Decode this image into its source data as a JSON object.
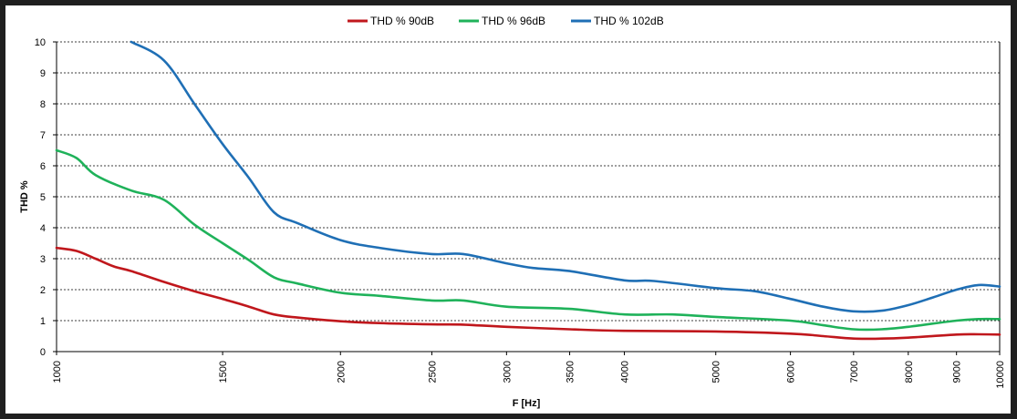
{
  "chart_data": {
    "type": "line",
    "xlabel": "F [Hz]",
    "ylabel": "THD %",
    "x_scale": "log",
    "xlim": [
      1000,
      10000
    ],
    "ylim": [
      0,
      10
    ],
    "x_ticks": [
      1000,
      1500,
      2000,
      2500,
      3000,
      3500,
      4000,
      5000,
      6000,
      7000,
      8000,
      9000,
      10000
    ],
    "y_ticks": [
      0,
      1,
      2,
      3,
      4,
      5,
      6,
      7,
      8,
      9,
      10
    ],
    "grid": "horizontal dashed",
    "legend_position": "top",
    "series": [
      {
        "name": "THD % 90dB",
        "color": "#c0171c",
        "points": [
          [
            1000,
            3.35
          ],
          [
            1050,
            3.25
          ],
          [
            1100,
            3.0
          ],
          [
            1150,
            2.75
          ],
          [
            1200,
            2.6
          ],
          [
            1300,
            2.25
          ],
          [
            1400,
            1.95
          ],
          [
            1500,
            1.7
          ],
          [
            1600,
            1.45
          ],
          [
            1700,
            1.2
          ],
          [
            1800,
            1.1
          ],
          [
            2000,
            0.98
          ],
          [
            2200,
            0.92
          ],
          [
            2500,
            0.88
          ],
          [
            2700,
            0.87
          ],
          [
            3000,
            0.8
          ],
          [
            3500,
            0.72
          ],
          [
            4000,
            0.67
          ],
          [
            5000,
            0.65
          ],
          [
            6000,
            0.58
          ],
          [
            6500,
            0.5
          ],
          [
            7000,
            0.42
          ],
          [
            7500,
            0.42
          ],
          [
            8000,
            0.45
          ],
          [
            9000,
            0.55
          ],
          [
            9500,
            0.56
          ],
          [
            10000,
            0.55
          ]
        ]
      },
      {
        "name": "THD % 96dB",
        "color": "#1fb25a",
        "points": [
          [
            1000,
            6.5
          ],
          [
            1050,
            6.25
          ],
          [
            1100,
            5.7
          ],
          [
            1200,
            5.2
          ],
          [
            1300,
            4.9
          ],
          [
            1400,
            4.1
          ],
          [
            1500,
            3.5
          ],
          [
            1600,
            2.95
          ],
          [
            1700,
            2.4
          ],
          [
            1800,
            2.2
          ],
          [
            2000,
            1.9
          ],
          [
            2200,
            1.8
          ],
          [
            2500,
            1.65
          ],
          [
            2700,
            1.65
          ],
          [
            3000,
            1.45
          ],
          [
            3500,
            1.38
          ],
          [
            4000,
            1.2
          ],
          [
            4500,
            1.2
          ],
          [
            5000,
            1.12
          ],
          [
            6000,
            1.0
          ],
          [
            6500,
            0.85
          ],
          [
            7000,
            0.72
          ],
          [
            7500,
            0.72
          ],
          [
            8000,
            0.8
          ],
          [
            9000,
            1.0
          ],
          [
            9500,
            1.05
          ],
          [
            10000,
            1.05
          ]
        ]
      },
      {
        "name": "THD % 102dB",
        "color": "#1f6fb5",
        "points": [
          [
            1200,
            10.0
          ],
          [
            1300,
            9.4
          ],
          [
            1400,
            8.0
          ],
          [
            1500,
            6.7
          ],
          [
            1600,
            5.6
          ],
          [
            1700,
            4.5
          ],
          [
            1800,
            4.15
          ],
          [
            2000,
            3.6
          ],
          [
            2200,
            3.35
          ],
          [
            2500,
            3.15
          ],
          [
            2700,
            3.15
          ],
          [
            3000,
            2.85
          ],
          [
            3200,
            2.7
          ],
          [
            3500,
            2.6
          ],
          [
            4000,
            2.3
          ],
          [
            4300,
            2.28
          ],
          [
            5000,
            2.05
          ],
          [
            5500,
            1.95
          ],
          [
            6000,
            1.7
          ],
          [
            6500,
            1.45
          ],
          [
            7000,
            1.3
          ],
          [
            7500,
            1.32
          ],
          [
            8000,
            1.5
          ],
          [
            8500,
            1.75
          ],
          [
            9000,
            2.0
          ],
          [
            9500,
            2.15
          ],
          [
            10000,
            2.1
          ]
        ]
      }
    ]
  }
}
